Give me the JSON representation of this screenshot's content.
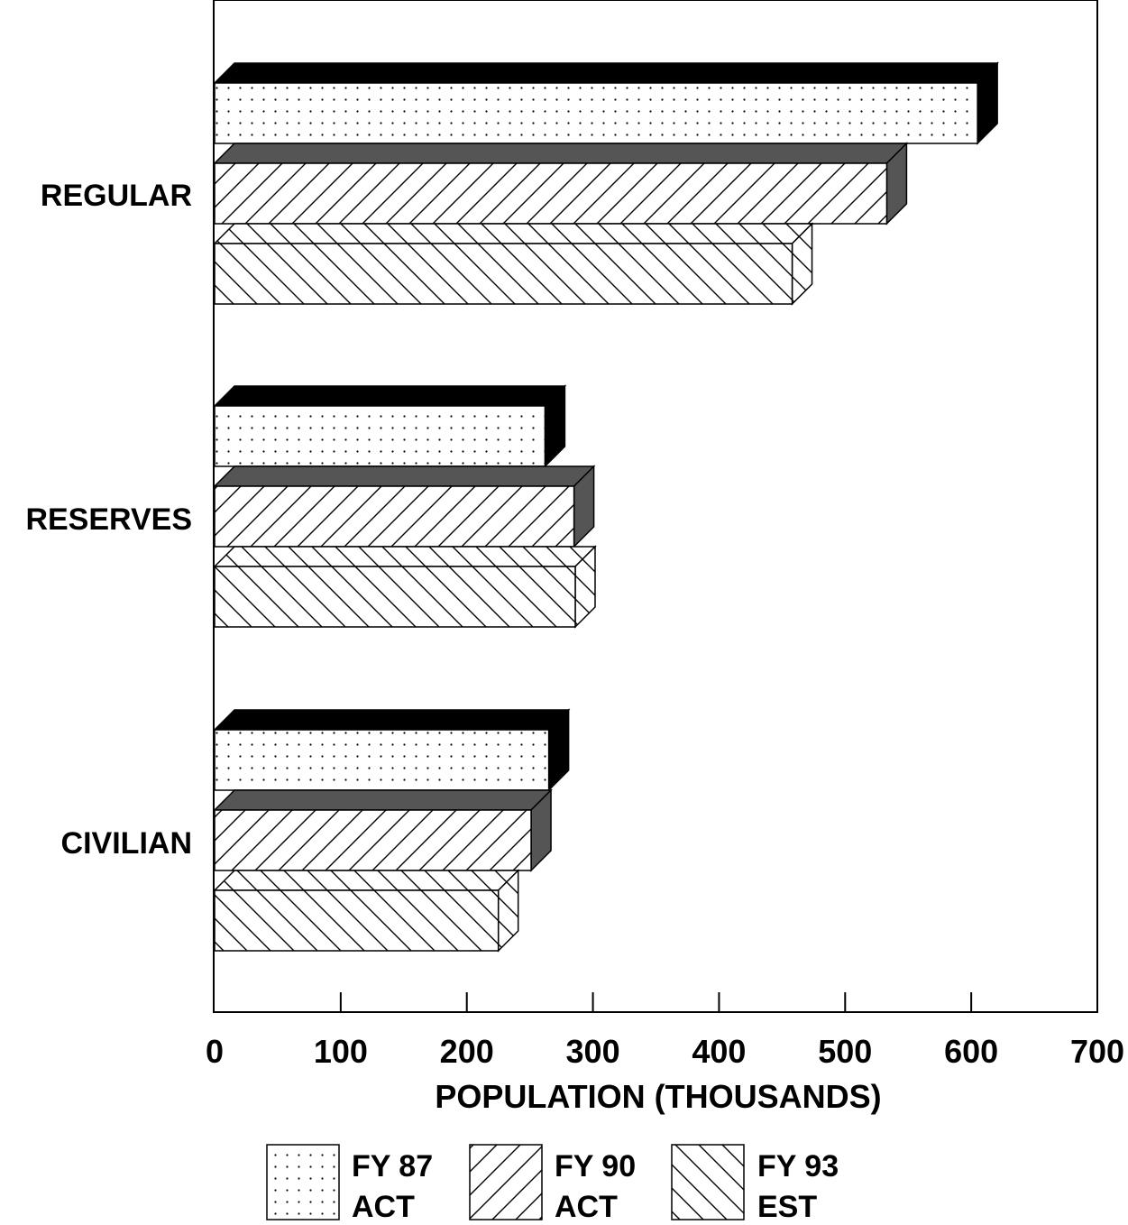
{
  "chart_data": {
    "type": "bar",
    "orientation": "horizontal",
    "style": "3d",
    "categories": [
      "REGULAR",
      "RESERVES",
      "CIVILIAN"
    ],
    "series": [
      {
        "name": "FY 87 ACT",
        "legend_line1": "FY 87",
        "legend_line2": "ACT",
        "pattern": "dots",
        "values": [
          605,
          262,
          265
        ]
      },
      {
        "name": "FY 90 ACT",
        "legend_line1": "FY 90",
        "legend_line2": "ACT",
        "pattern": "diagonal-forward",
        "values": [
          533,
          285,
          251
        ]
      },
      {
        "name": "FY 93 EST",
        "legend_line1": "FY 93",
        "legend_line2": "EST",
        "pattern": "diagonal-back",
        "values": [
          458,
          286,
          225
        ]
      }
    ],
    "xlabel": "POPULATION (THOUSANDS)",
    "xlim": [
      0,
      700
    ],
    "xticks": [
      "0",
      "100",
      "200",
      "300",
      "400",
      "500",
      "600",
      "700"
    ],
    "grid": false,
    "legend_position": "bottom",
    "colors": {
      "ink": "#000000",
      "background": "#ffffff",
      "top_face_fy87": "#000000",
      "top_face_fy90": "#555555"
    }
  }
}
